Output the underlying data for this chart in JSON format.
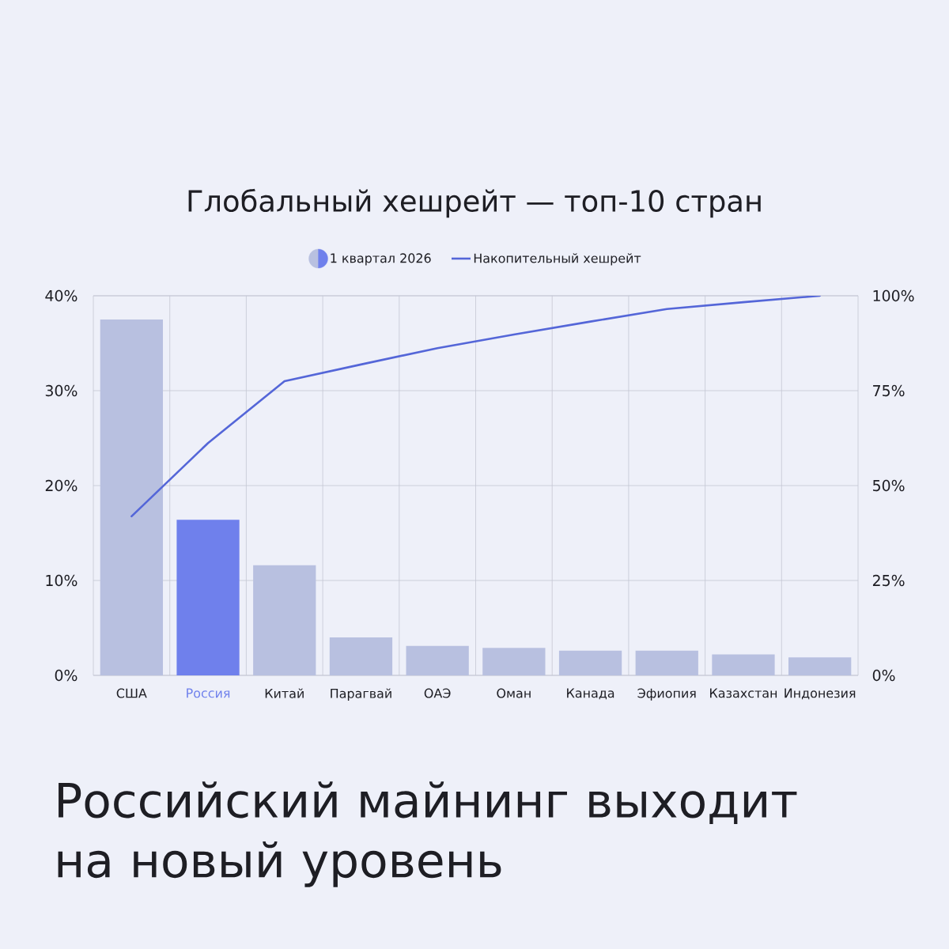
{
  "chart_data": {
    "type": "bar",
    "title": "Глобальный хешрейт — топ-10 стран",
    "annotations": [
      "Российский майнинг выходит на новый уровень"
    ],
    "categories": [
      "США",
      "Россия",
      "Китай",
      "Парагвай",
      "ОАЭ",
      "Оман",
      "Канада",
      "Эфиопия",
      "Казахстан",
      "Индонезия"
    ],
    "series": [
      {
        "name": "1 квартал 2026",
        "colors": [
          "#b8c0e0",
          "#6f80ec",
          "#b8c0e0",
          "#b8c0e0",
          "#b8c0e0",
          "#b8c0e0",
          "#b8c0e0",
          "#b8c0e0",
          "#b8c0e0",
          "#b8c0e0"
        ],
        "values": [
          37.5,
          16.4,
          11.6,
          4.0,
          3.1,
          2.9,
          2.6,
          2.6,
          2.2,
          1.9
        ]
      },
      {
        "name": "Накопительный хешрейт",
        "type": "line",
        "axis": "y2",
        "color": "#5466d8",
        "values": [
          41.9,
          61.2,
          77.5,
          81.9,
          86.2,
          89.8,
          93.2,
          96.5,
          98.3,
          100
        ]
      }
    ],
    "ylim": [
      0,
      40
    ],
    "yticks": [
      {
        "value": 0,
        "label": "0%"
      },
      {
        "value": 10,
        "label": "10%"
      },
      {
        "value": 20,
        "label": "20%"
      },
      {
        "value": 30,
        "label": "30%"
      },
      {
        "value": 40,
        "label": "40%"
      }
    ],
    "y2lim": [
      0,
      100
    ],
    "y2ticks": [
      {
        "value": 0,
        "label": "0%"
      },
      {
        "value": 25,
        "label": "25%"
      },
      {
        "value": 50,
        "label": "50%"
      },
      {
        "value": 75,
        "label": "75%"
      },
      {
        "value": 100,
        "label": "100%"
      }
    ],
    "grid": true,
    "legend": "top"
  }
}
